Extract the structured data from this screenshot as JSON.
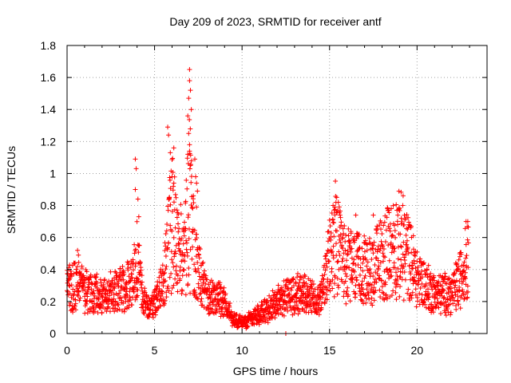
{
  "chart_data": {
    "type": "scatter",
    "title": "Day 209 of 2023, SRMTID for receiver antf",
    "xlabel": "GPS time / hours",
    "ylabel": "SRMTID / TECUs",
    "xlim": [
      0,
      24
    ],
    "ylim": [
      0,
      1.8
    ],
    "xticks": [
      "0",
      "5",
      "10",
      "15",
      "20"
    ],
    "yticks": [
      "0",
      "0.2",
      "0.4",
      "0.6",
      "0.8",
      "1",
      "1.2",
      "1.4",
      "1.6",
      "1.8"
    ],
    "grid": true,
    "marker": "+",
    "color": "#ff0000",
    "profile": [
      {
        "x": 0.0,
        "y": 0.3
      },
      {
        "x": 0.5,
        "y": 0.3
      },
      {
        "x": 1.0,
        "y": 0.27
      },
      {
        "x": 1.5,
        "y": 0.25
      },
      {
        "x": 2.0,
        "y": 0.24
      },
      {
        "x": 2.5,
        "y": 0.25
      },
      {
        "x": 3.0,
        "y": 0.28
      },
      {
        "x": 3.5,
        "y": 0.3
      },
      {
        "x": 3.8,
        "y": 0.35
      },
      {
        "x": 4.0,
        "y": 0.45
      },
      {
        "x": 4.3,
        "y": 0.25
      },
      {
        "x": 4.6,
        "y": 0.15
      },
      {
        "x": 5.0,
        "y": 0.2
      },
      {
        "x": 5.5,
        "y": 0.3
      },
      {
        "x": 5.8,
        "y": 0.55
      },
      {
        "x": 6.0,
        "y": 0.7
      },
      {
        "x": 6.3,
        "y": 0.5
      },
      {
        "x": 6.7,
        "y": 0.5
      },
      {
        "x": 7.0,
        "y": 0.8
      },
      {
        "x": 7.3,
        "y": 0.45
      },
      {
        "x": 7.6,
        "y": 0.35
      },
      {
        "x": 8.0,
        "y": 0.22
      },
      {
        "x": 8.5,
        "y": 0.22
      },
      {
        "x": 9.0,
        "y": 0.2
      },
      {
        "x": 9.5,
        "y": 0.08
      },
      {
        "x": 10.0,
        "y": 0.07
      },
      {
        "x": 10.5,
        "y": 0.1
      },
      {
        "x": 11.0,
        "y": 0.13
      },
      {
        "x": 11.5,
        "y": 0.15
      },
      {
        "x": 12.0,
        "y": 0.2
      },
      {
        "x": 12.5,
        "y": 0.23
      },
      {
        "x": 13.0,
        "y": 0.25
      },
      {
        "x": 13.5,
        "y": 0.25
      },
      {
        "x": 14.0,
        "y": 0.22
      },
      {
        "x": 14.5,
        "y": 0.22
      },
      {
        "x": 15.0,
        "y": 0.45
      },
      {
        "x": 15.3,
        "y": 0.6
      },
      {
        "x": 15.7,
        "y": 0.45
      },
      {
        "x": 16.2,
        "y": 0.42
      },
      {
        "x": 16.7,
        "y": 0.4
      },
      {
        "x": 17.2,
        "y": 0.38
      },
      {
        "x": 17.8,
        "y": 0.45
      },
      {
        "x": 18.3,
        "y": 0.5
      },
      {
        "x": 18.8,
        "y": 0.55
      },
      {
        "x": 19.2,
        "y": 0.55
      },
      {
        "x": 19.6,
        "y": 0.45
      },
      {
        "x": 20.0,
        "y": 0.35
      },
      {
        "x": 20.5,
        "y": 0.3
      },
      {
        "x": 21.0,
        "y": 0.25
      },
      {
        "x": 21.5,
        "y": 0.25
      },
      {
        "x": 22.0,
        "y": 0.25
      },
      {
        "x": 22.5,
        "y": 0.35
      },
      {
        "x": 22.9,
        "y": 0.5
      }
    ],
    "peaks": [
      {
        "x": 3.9,
        "y": 1.09
      },
      {
        "x": 3.95,
        "y": 1.03
      },
      {
        "x": 3.9,
        "y": 0.9
      },
      {
        "x": 4.05,
        "y": 0.84
      },
      {
        "x": 4.1,
        "y": 0.73
      },
      {
        "x": 5.75,
        "y": 1.29
      },
      {
        "x": 5.8,
        "y": 1.24
      },
      {
        "x": 5.9,
        "y": 1.13
      },
      {
        "x": 6.1,
        "y": 1.16
      },
      {
        "x": 6.0,
        "y": 0.98
      },
      {
        "x": 6.1,
        "y": 0.94
      },
      {
        "x": 6.9,
        "y": 1.36
      },
      {
        "x": 7.0,
        "y": 1.65
      },
      {
        "x": 7.0,
        "y": 1.58
      },
      {
        "x": 7.05,
        "y": 1.52
      },
      {
        "x": 6.95,
        "y": 1.47
      },
      {
        "x": 7.1,
        "y": 1.4
      },
      {
        "x": 6.95,
        "y": 1.25
      },
      {
        "x": 7.0,
        "y": 1.18
      },
      {
        "x": 6.9,
        "y": 1.12
      },
      {
        "x": 7.05,
        "y": 1.05
      },
      {
        "x": 7.3,
        "y": 1.09
      },
      {
        "x": 7.35,
        "y": 0.98
      },
      {
        "x": 7.4,
        "y": 0.94
      },
      {
        "x": 7.45,
        "y": 0.89
      },
      {
        "x": 7.4,
        "y": 0.79
      },
      {
        "x": 15.2,
        "y": 0.8
      },
      {
        "x": 15.3,
        "y": 0.79
      },
      {
        "x": 15.6,
        "y": 0.74
      },
      {
        "x": 16.5,
        "y": 0.74
      },
      {
        "x": 17.5,
        "y": 0.74
      },
      {
        "x": 18.9,
        "y": 0.74
      },
      {
        "x": 19.1,
        "y": 0.72
      },
      {
        "x": 22.8,
        "y": 0.7
      },
      {
        "x": 22.9,
        "y": 0.7
      },
      {
        "x": 12.5,
        "y": 0.0
      },
      {
        "x": 0.6,
        "y": 0.52
      },
      {
        "x": 0.65,
        "y": 0.49
      },
      {
        "x": 14.9,
        "y": 0.52
      }
    ]
  }
}
